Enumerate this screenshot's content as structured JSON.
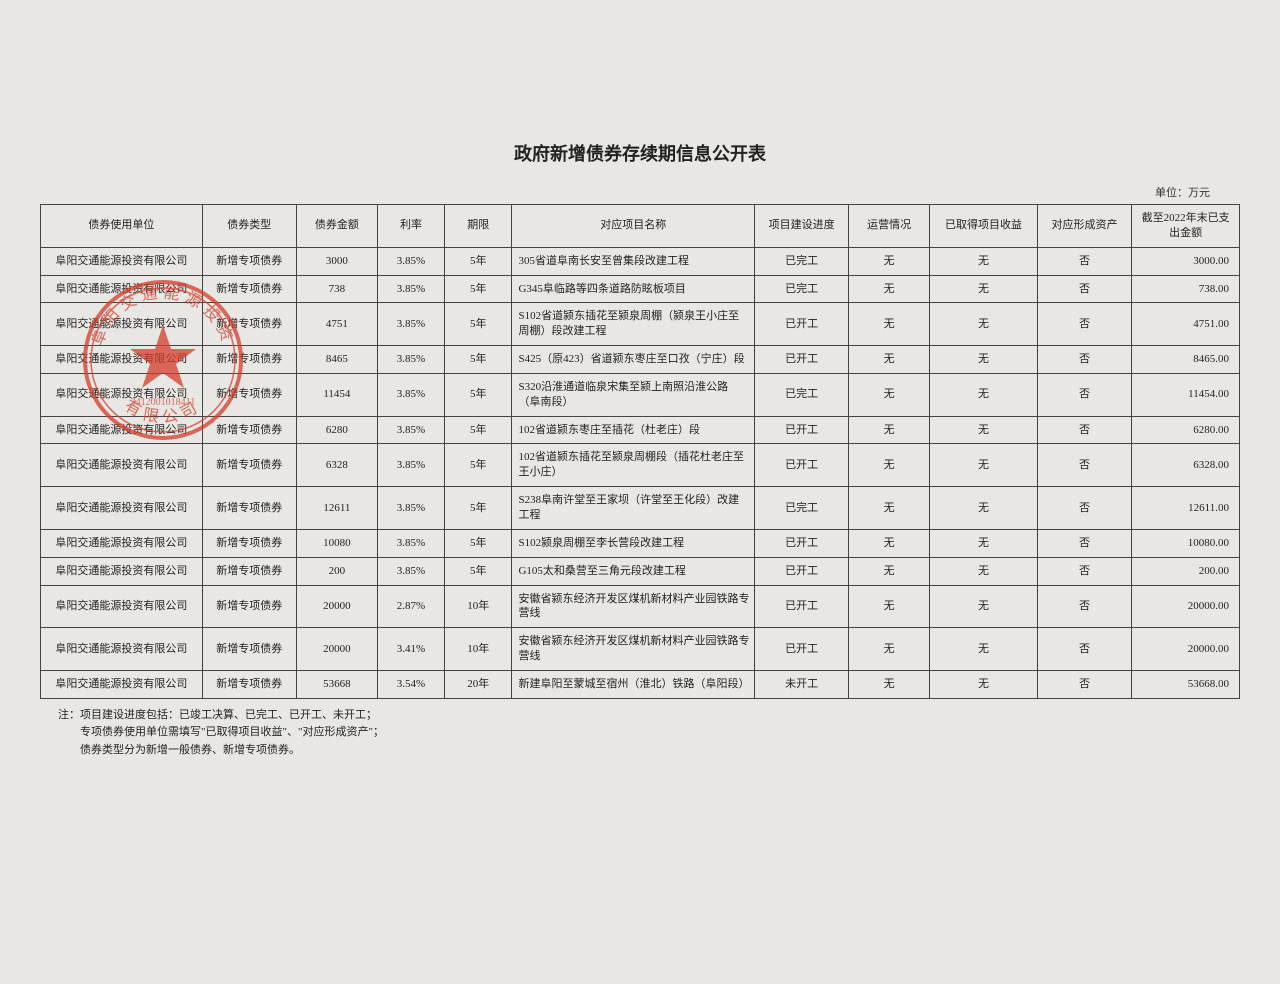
{
  "title": "政府新增债券存续期信息公开表",
  "unit_label": "单位：万元",
  "columns": [
    "债券使用单位",
    "债券类型",
    "债券金额",
    "利率",
    "期限",
    "对应项目名称",
    "项目建设进度",
    "运营情况",
    "已取得项目收益",
    "对应形成资产",
    "截至2022年末已支出金额"
  ],
  "rows": [
    [
      "阜阳交通能源投资有限公司",
      "新增专项债券",
      "3000",
      "3.85%",
      "5年",
      "305省道阜南长安至曾集段改建工程",
      "已完工",
      "无",
      "无",
      "否",
      "3000.00"
    ],
    [
      "阜阳交通能源投资有限公司",
      "新增专项债券",
      "738",
      "3.85%",
      "5年",
      "G345阜临路等四条道路防眩板项目",
      "已完工",
      "无",
      "无",
      "否",
      "738.00"
    ],
    [
      "阜阳交通能源投资有限公司",
      "新增专项债券",
      "4751",
      "3.85%",
      "5年",
      "S102省道颍东插花至颍泉周棚（颍泉王小庄至周棚）段改建工程",
      "已开工",
      "无",
      "无",
      "否",
      "4751.00"
    ],
    [
      "阜阳交通能源投资有限公司",
      "新增专项债券",
      "8465",
      "3.85%",
      "5年",
      "S425（原423）省道颍东枣庄至口孜（宁庄）段",
      "已开工",
      "无",
      "无",
      "否",
      "8465.00"
    ],
    [
      "阜阳交通能源投资有限公司",
      "新增专项债券",
      "11454",
      "3.85%",
      "5年",
      "S320沿淮通道临泉宋集至颍上南照沿淮公路（阜南段）",
      "已完工",
      "无",
      "无",
      "否",
      "11454.00"
    ],
    [
      "阜阳交通能源投资有限公司",
      "新增专项债券",
      "6280",
      "3.85%",
      "5年",
      "102省道颍东枣庄至插花（杜老庄）段",
      "已开工",
      "无",
      "无",
      "否",
      "6280.00"
    ],
    [
      "阜阳交通能源投资有限公司",
      "新增专项债券",
      "6328",
      "3.85%",
      "5年",
      "102省道颍东插花至颍泉周棚段（插花杜老庄至王小庄）",
      "已开工",
      "无",
      "无",
      "否",
      "6328.00"
    ],
    [
      "阜阳交通能源投资有限公司",
      "新增专项债券",
      "12611",
      "3.85%",
      "5年",
      "S238阜南许堂至王家坝（许堂至王化段）改建工程",
      "已完工",
      "无",
      "无",
      "否",
      "12611.00"
    ],
    [
      "阜阳交通能源投资有限公司",
      "新增专项债券",
      "10080",
      "3.85%",
      "5年",
      "S102颍泉周棚至李长营段改建工程",
      "已开工",
      "无",
      "无",
      "否",
      "10080.00"
    ],
    [
      "阜阳交通能源投资有限公司",
      "新增专项债券",
      "200",
      "3.85%",
      "5年",
      "G105太和桑营至三角元段改建工程",
      "已开工",
      "无",
      "无",
      "否",
      "200.00"
    ],
    [
      "阜阳交通能源投资有限公司",
      "新增专项债券",
      "20000",
      "2.87%",
      "10年",
      "安徽省颍东经济开发区煤机新材料产业园铁路专营线",
      "已开工",
      "无",
      "无",
      "否",
      "20000.00"
    ],
    [
      "阜阳交通能源投资有限公司",
      "新增专项债券",
      "20000",
      "3.41%",
      "10年",
      "安徽省颍东经济开发区煤机新材料产业园铁路专营线",
      "已开工",
      "无",
      "无",
      "否",
      "20000.00"
    ],
    [
      "阜阳交通能源投资有限公司",
      "新增专项债券",
      "53668",
      "3.54%",
      "20年",
      "新建阜阳至蒙城至宿州（淮北）铁路（阜阳段）",
      "未开工",
      "无",
      "无",
      "否",
      "53668.00"
    ]
  ],
  "footnote_lines": [
    "注：项目建设进度包括：已竣工决算、已完工、已开工、未开工；",
    "　　专项债券使用单位需填写\"已取得项目收益\"、\"对应形成资产\"；",
    "　　债券类型分为新增一般债券、新增专项债券。"
  ],
  "stamp": {
    "outer_text_top": "阜阳交通能源投资",
    "outer_text_bottom": "有限公司",
    "serial": "3412001018411",
    "color": "#d63b2b",
    "opacity": 0.75
  }
}
